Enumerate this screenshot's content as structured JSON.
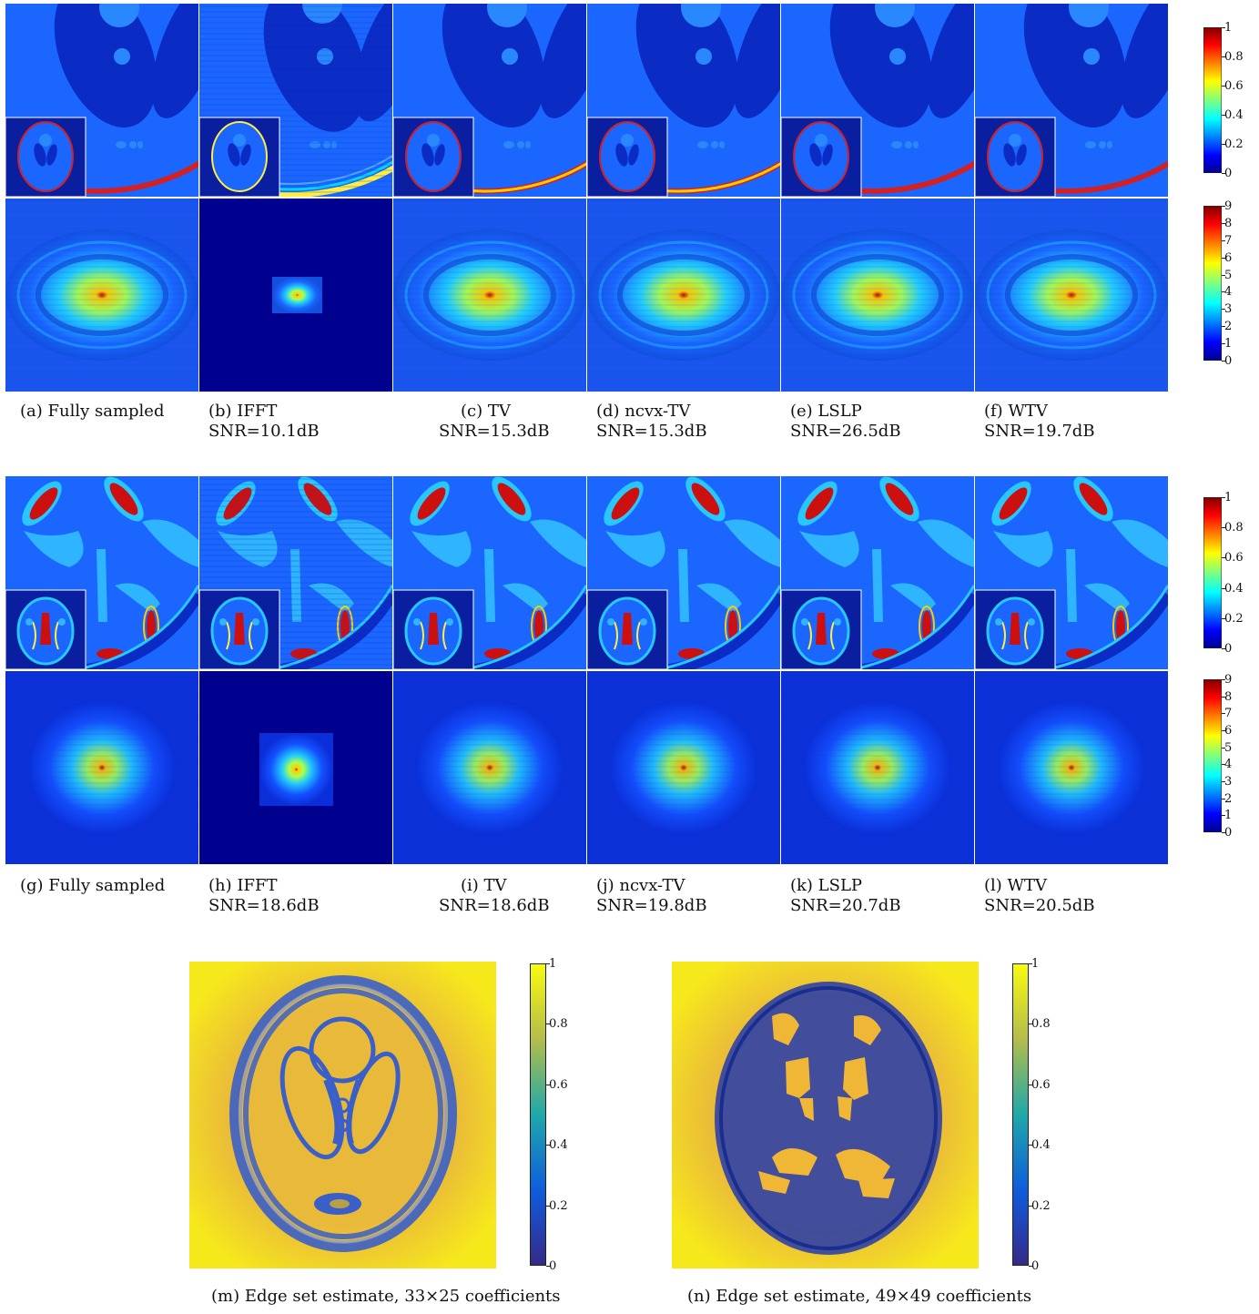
{
  "row1_captions": [
    {
      "label": "(a) Fully sampled",
      "snr": ""
    },
    {
      "label": "(b) IFFT",
      "snr": "SNR=10.1dB"
    },
    {
      "label": "(c) TV",
      "snr": "SNR=15.3dB"
    },
    {
      "label": "(d) ncvx-TV",
      "snr": "SNR=15.3dB"
    },
    {
      "label": "(e) LSLP",
      "snr": "SNR=26.5dB"
    },
    {
      "label": "(f) WTV",
      "snr": "SNR=19.7dB"
    }
  ],
  "row2_captions": [
    {
      "label": "(g) Fully sampled",
      "snr": ""
    },
    {
      "label": "(h) IFFT",
      "snr": "SNR=18.6dB"
    },
    {
      "label": "(i) TV",
      "snr": "SNR=18.6dB"
    },
    {
      "label": "(j) ncvx-TV",
      "snr": "SNR=19.8dB"
    },
    {
      "label": "(k) LSLP",
      "snr": "SNR=20.7dB"
    },
    {
      "label": "(l) WTV",
      "snr": "SNR=20.5dB"
    }
  ],
  "bottom_captions": {
    "m": "(m) Edge set estimate, 33×25 coefficients",
    "n": "(n) Edge set estimate, 49×49 coefficients"
  },
  "colorbars": {
    "image_ticks": [
      "1",
      "0.8",
      "0.6",
      "0.4",
      "0.2",
      "0"
    ],
    "spectrum_ticks": [
      "9",
      "8",
      "7",
      "6",
      "5",
      "4",
      "3",
      "2",
      "1",
      "0"
    ],
    "edge_ticks": [
      "1",
      "0.8",
      "0.6",
      "0.4",
      "0.2",
      "0"
    ]
  },
  "colors": {
    "jet_dark_blue": "#00008f",
    "jet_blue": "#0a5cff",
    "jet_cyan": "#00e6ff",
    "jet_yellow": "#ffee00",
    "jet_red": "#cc0000",
    "parula_blue": "#3e44c8",
    "parula_yellow": "#f5e81a"
  }
}
